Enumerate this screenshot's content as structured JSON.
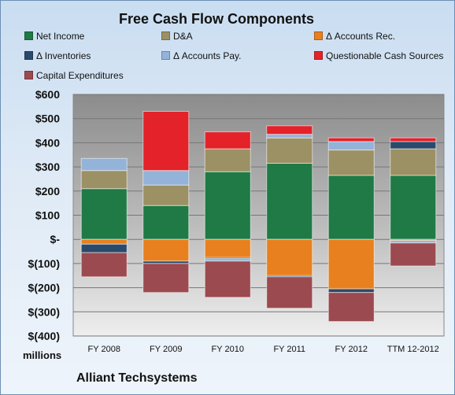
{
  "chart_data": {
    "type": "bar",
    "title": "Free Cash Flow Components",
    "subtitle": "",
    "xlabel": "",
    "ylabel": "",
    "units_label": "millions",
    "footer": "Alliant Techsystems",
    "categories": [
      "FY 2008",
      "FY 2009",
      "FY 2010",
      "FY 2011",
      "FY 2012",
      "TTM 12-2012"
    ],
    "ylim": [
      -400,
      600
    ],
    "yticks": [
      -400,
      -300,
      -200,
      -100,
      0,
      100,
      200,
      300,
      400,
      500,
      600
    ],
    "ytick_labels": [
      "$(400)",
      "$(300)",
      "$(200)",
      "$(100)",
      "$-",
      "$100",
      "$200",
      "$300",
      "$400",
      "$500",
      "$600"
    ],
    "stacked": true,
    "grid": true,
    "legend_position": "top",
    "series": [
      {
        "name": "Net Income",
        "color": "#1f7a45",
        "values": [
          210,
          140,
          280,
          315,
          265,
          265
        ]
      },
      {
        "name": "D&A",
        "color": "#9c9164",
        "values": [
          75,
          85,
          95,
          105,
          105,
          110
        ]
      },
      {
        "name": "Δ Accounts Rec.",
        "color": "#e8801f",
        "values": [
          -20,
          -90,
          -75,
          -150,
          -205,
          -5
        ]
      },
      {
        "name": "Δ Inventories",
        "color": "#2a4a6b",
        "values": [
          -35,
          -10,
          -5,
          -5,
          -15,
          30
        ]
      },
      {
        "name": "Δ Accounts Pay.",
        "color": "#93b3d8",
        "values": [
          50,
          60,
          -10,
          15,
          35,
          -10
        ]
      },
      {
        "name": "Questionable Cash Sources",
        "color": "#e3222a",
        "values": [
          0,
          245,
          70,
          35,
          15,
          15
        ]
      },
      {
        "name": "Capital Expenditures",
        "color": "#9b4a4f",
        "values": [
          -100,
          -120,
          -150,
          -130,
          -120,
          -95
        ]
      }
    ]
  }
}
